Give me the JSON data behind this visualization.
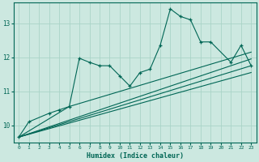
{
  "xlabel": "Humidex (Indice chaleur)",
  "bg_color": "#cce8e0",
  "line_color": "#006655",
  "grid_color": "#aad4c8",
  "xlim": [
    -0.5,
    23.5
  ],
  "ylim": [
    9.5,
    13.6
  ],
  "yticks": [
    10,
    11,
    12,
    13
  ],
  "xticks": [
    0,
    1,
    2,
    3,
    4,
    5,
    6,
    7,
    8,
    9,
    10,
    11,
    12,
    13,
    14,
    15,
    16,
    17,
    18,
    19,
    20,
    21,
    22,
    23
  ],
  "main_x": [
    0,
    1,
    3,
    4,
    5,
    6,
    7,
    8,
    9,
    10,
    11,
    12,
    13,
    14,
    15,
    16,
    17,
    18,
    19,
    21,
    22,
    23
  ],
  "main_y": [
    9.65,
    10.1,
    10.35,
    10.45,
    10.55,
    11.97,
    11.85,
    11.75,
    11.75,
    11.45,
    11.15,
    11.55,
    11.65,
    12.35,
    13.42,
    13.2,
    13.1,
    12.45,
    12.45,
    11.85,
    12.35,
    11.75
  ],
  "trend_lines": [
    {
      "x": [
        0,
        23
      ],
      "y": [
        9.65,
        11.55
      ]
    },
    {
      "x": [
        0,
        23
      ],
      "y": [
        9.65,
        11.75
      ]
    },
    {
      "x": [
        0,
        23
      ],
      "y": [
        9.65,
        11.95
      ]
    },
    {
      "x": [
        0,
        5,
        23
      ],
      "y": [
        9.65,
        10.55,
        12.15
      ]
    }
  ]
}
